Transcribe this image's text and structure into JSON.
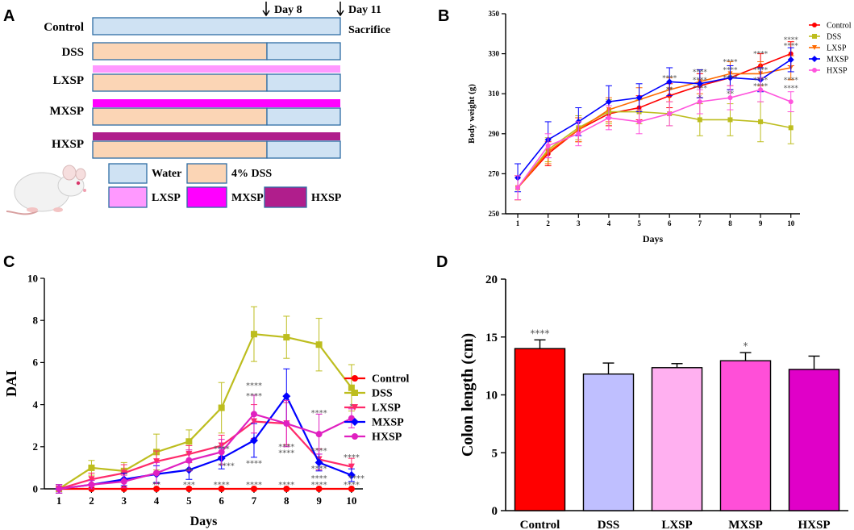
{
  "panels": {
    "a": "A",
    "b": "B",
    "c": "C",
    "d": "D"
  },
  "panel_a": {
    "day8": "Day 8",
    "day11": "Day 11",
    "sacrifice": "Sacrifice",
    "groups": [
      "Control",
      "DSS",
      "LXSP",
      "MXSP",
      "HXSP"
    ],
    "legend": [
      "Water",
      "4% DSS",
      "LXSP",
      "MXSP",
      "HXSP"
    ],
    "colors": {
      "water": "#cfe2f3",
      "dss": "#fbd5b5",
      "lxsp": "#ff99ff",
      "mxsp": "#ff00ff",
      "hxsp": "#b01e8c",
      "border": "#2e6da4"
    }
  },
  "chart_data": [
    {
      "id": "B",
      "type": "line",
      "title": "",
      "xlabel": "Days",
      "ylabel": "Body weight (g)",
      "x": [
        1,
        2,
        3,
        4,
        5,
        6,
        7,
        8,
        9,
        10
      ],
      "ylim": [
        250,
        350
      ],
      "yticks": [
        250,
        270,
        290,
        310,
        330,
        350
      ],
      "series": [
        {
          "name": "Control",
          "color": "#ff0000",
          "values": [
            263,
            280,
            292,
            300,
            303,
            309,
            314,
            318,
            324,
            330
          ],
          "err": [
            6,
            6,
            6,
            6,
            6,
            6,
            6,
            6,
            6,
            6
          ]
        },
        {
          "name": "DSS",
          "color": "#bdbd1e",
          "values": [
            263,
            282,
            293,
            301,
            301,
            300,
            297,
            297,
            296,
            293
          ],
          "err": [
            6,
            6,
            6,
            6,
            6,
            6,
            8,
            8,
            10,
            8
          ]
        },
        {
          "name": "LXSP",
          "color": "#ff6a00",
          "values": [
            263,
            281,
            292,
            302,
            307,
            312,
            316,
            320,
            320,
            323
          ],
          "err": [
            6,
            6,
            6,
            6,
            6,
            6,
            6,
            6,
            6,
            6
          ]
        },
        {
          "name": "MXSP",
          "color": "#0000ff",
          "values": [
            268,
            287,
            296,
            306,
            308,
            316,
            315,
            318,
            317,
            327
          ],
          "err": [
            7,
            9,
            7,
            8,
            7,
            7,
            7,
            6,
            6,
            6
          ]
        },
        {
          "name": "HXSP",
          "color": "#ff55dd",
          "values": [
            263,
            284,
            290,
            298,
            296,
            300,
            306,
            308,
            312,
            306
          ],
          "err": [
            6,
            6,
            6,
            6,
            6,
            6,
            6,
            6,
            6,
            5
          ]
        }
      ],
      "annotations": [
        {
          "x": 6,
          "y": 318,
          "text": "****"
        },
        {
          "x": 6,
          "y": 312,
          "text": "**"
        },
        {
          "x": 7,
          "y": 321,
          "text": "****"
        },
        {
          "x": 7,
          "y": 317,
          "text": "****"
        },
        {
          "x": 7,
          "y": 313,
          "text": "****"
        },
        {
          "x": 7,
          "y": 308,
          "text": "*"
        },
        {
          "x": 8,
          "y": 326,
          "text": "****"
        },
        {
          "x": 8,
          "y": 322,
          "text": "****"
        },
        {
          "x": 8,
          "y": 318,
          "text": "****"
        },
        {
          "x": 8,
          "y": 310,
          "text": "**"
        },
        {
          "x": 9,
          "y": 330,
          "text": "****"
        },
        {
          "x": 9,
          "y": 322,
          "text": "****"
        },
        {
          "x": 9,
          "y": 317,
          "text": "****"
        },
        {
          "x": 9,
          "y": 314,
          "text": "****"
        },
        {
          "x": 10,
          "y": 337,
          "text": "****"
        },
        {
          "x": 10,
          "y": 334,
          "text": "****"
        },
        {
          "x": 10,
          "y": 317,
          "text": "****"
        },
        {
          "x": 10,
          "y": 313,
          "text": "****"
        }
      ]
    },
    {
      "id": "C",
      "type": "line",
      "title": "",
      "xlabel": "Days",
      "ylabel": "DAI",
      "x": [
        1,
        2,
        3,
        4,
        5,
        6,
        7,
        8,
        9,
        10
      ],
      "ylim": [
        0,
        10
      ],
      "yticks": [
        0,
        2,
        4,
        6,
        8,
        10
      ],
      "series": [
        {
          "name": "Control",
          "color": "#ff0000",
          "values": [
            0,
            0,
            0,
            0,
            0,
            0,
            0,
            0,
            0,
            0
          ],
          "err": [
            0,
            0,
            0,
            0,
            0,
            0,
            0,
            0,
            0,
            0
          ]
        },
        {
          "name": "DSS",
          "color": "#bdbd1e",
          "values": [
            0,
            1.0,
            0.85,
            1.75,
            2.25,
            3.85,
            7.35,
            7.2,
            6.85,
            4.8
          ],
          "err": [
            0.2,
            0.35,
            0.4,
            0.85,
            0.55,
            1.2,
            1.3,
            1.0,
            1.25,
            1.1
          ]
        },
        {
          "name": "LXSP",
          "color": "#ff2a6a",
          "values": [
            0,
            0.45,
            0.75,
            1.3,
            1.65,
            2.05,
            3.2,
            3.1,
            1.4,
            1.05
          ],
          "err": [
            0.2,
            0.3,
            0.4,
            0.5,
            0.4,
            0.5,
            0.8,
            1.0,
            0.5,
            0.4
          ]
        },
        {
          "name": "MXSP",
          "color": "#0000ff",
          "values": [
            0,
            0.2,
            0.45,
            0.7,
            0.9,
            1.45,
            2.3,
            4.4,
            1.25,
            0.65
          ],
          "err": [
            0.2,
            0.2,
            0.3,
            0.4,
            0.45,
            0.5,
            0.8,
            1.3,
            0.4,
            0.3
          ]
        },
        {
          "name": "HXSP",
          "color": "#e020c0",
          "values": [
            0,
            0.2,
            0.35,
            0.75,
            1.35,
            1.75,
            3.55,
            3.1,
            2.6,
            3.35
          ],
          "err": [
            0.2,
            0.2,
            0.3,
            0.5,
            0.5,
            0.6,
            0.9,
            1.1,
            0.95,
            0.45
          ]
        }
      ],
      "annotations": [
        {
          "x": 4,
          "y": 0.2,
          "text": "**"
        },
        {
          "x": 5,
          "y": 0.2,
          "text": "***"
        },
        {
          "x": 6,
          "y": 0.2,
          "text": "****"
        },
        {
          "x": 7,
          "y": 0.2,
          "text": "****"
        },
        {
          "x": 8,
          "y": 0.2,
          "text": "****"
        },
        {
          "x": 9,
          "y": 0.2,
          "text": "****"
        },
        {
          "x": 10,
          "y": 0.2,
          "text": "****"
        },
        {
          "x": 5,
          "y": 0.85,
          "text": "**"
        },
        {
          "x": 6,
          "y": 1.9,
          "text": "****"
        },
        {
          "x": 6.15,
          "y": 1.1,
          "text": "****"
        },
        {
          "x": 7,
          "y": 4.9,
          "text": "****"
        },
        {
          "x": 7,
          "y": 4.4,
          "text": "****"
        },
        {
          "x": 7,
          "y": 1.2,
          "text": "****"
        },
        {
          "x": 8,
          "y": 2.0,
          "text": "****"
        },
        {
          "x": 8,
          "y": 1.7,
          "text": "****"
        },
        {
          "x": 9,
          "y": 3.6,
          "text": "****"
        },
        {
          "x": 9,
          "y": 1.8,
          "text": "****"
        },
        {
          "x": 9,
          "y": 0.95,
          "text": "****"
        },
        {
          "x": 9,
          "y": 0.5,
          "text": "****"
        },
        {
          "x": 10,
          "y": 1.5,
          "text": "****"
        },
        {
          "x": 10.15,
          "y": 0.5,
          "text": "****"
        },
        {
          "x": 10,
          "y": 3.9,
          "text": "*"
        }
      ]
    },
    {
      "id": "D",
      "type": "bar",
      "title": "",
      "xlabel": "",
      "ylabel": "Colon length (cm)",
      "categories": [
        "Control",
        "DSS",
        "LXSP",
        "MXSP",
        "HXSP"
      ],
      "values": [
        14.0,
        11.8,
        12.35,
        12.95,
        12.2
      ],
      "err": [
        0.75,
        0.95,
        0.35,
        0.7,
        1.15
      ],
      "colors": [
        "#ff0000",
        "#bfbfff",
        "#ffb0f0",
        "#ff4fd8",
        "#e000c8"
      ],
      "ylim": [
        0,
        20
      ],
      "yticks": [
        0,
        5,
        10,
        15,
        20
      ],
      "annotations": [
        {
          "category": "Control",
          "text": "****"
        },
        {
          "category": "MXSP",
          "text": "*"
        }
      ]
    }
  ]
}
